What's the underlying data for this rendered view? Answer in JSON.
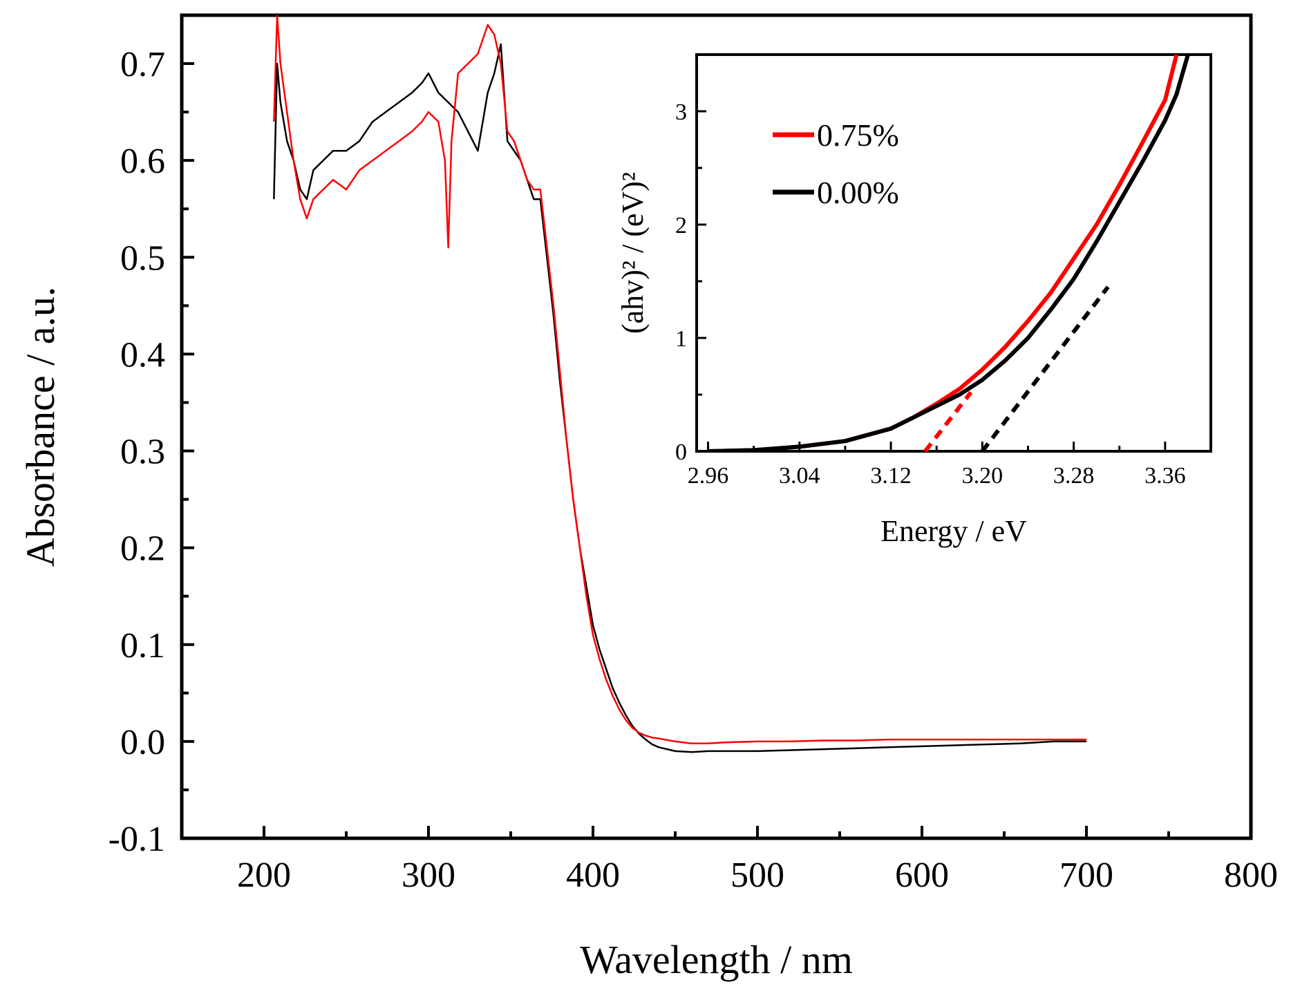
{
  "chart_data": [
    {
      "type": "line",
      "xlabel": "Wavelength / nm",
      "ylabel": "Absorbance / a.u.",
      "xlim": [
        150,
        800
      ],
      "ylim": [
        -0.1,
        0.75
      ],
      "x_ticks": [
        200,
        300,
        400,
        500,
        600,
        700,
        800
      ],
      "x_tick_labels": [
        "200",
        "300",
        "400",
        "500",
        "600",
        "700",
        "800"
      ],
      "y_ticks": [
        -0.1,
        0.0,
        0.1,
        0.2,
        0.3,
        0.4,
        0.5,
        0.6,
        0.7
      ],
      "y_tick_labels": [
        "-0.1",
        "0.0",
        "0.1",
        "0.2",
        "0.3",
        "0.4",
        "0.5",
        "0.6",
        "0.7"
      ],
      "grid": false,
      "series": [
        {
          "name": "0.00%",
          "color": "#000000",
          "x": [
            206,
            208,
            210,
            214,
            218,
            222,
            226,
            230,
            236,
            242,
            250,
            258,
            266,
            274,
            282,
            290,
            296,
            300,
            306,
            312,
            318,
            324,
            330,
            336,
            340,
            344,
            348,
            352,
            356,
            360,
            364,
            368,
            372,
            376,
            380,
            384,
            388,
            392,
            396,
            400,
            404,
            408,
            412,
            416,
            420,
            424,
            428,
            432,
            436,
            440,
            450,
            460,
            470,
            480,
            500,
            520,
            540,
            560,
            580,
            600,
            620,
            640,
            660,
            680,
            700
          ],
          "values": [
            0.56,
            0.7,
            0.66,
            0.62,
            0.6,
            0.57,
            0.56,
            0.59,
            0.6,
            0.61,
            0.61,
            0.62,
            0.64,
            0.65,
            0.66,
            0.67,
            0.68,
            0.69,
            0.67,
            0.66,
            0.65,
            0.63,
            0.61,
            0.67,
            0.69,
            0.72,
            0.62,
            0.61,
            0.6,
            0.58,
            0.56,
            0.56,
            0.5,
            0.44,
            0.37,
            0.31,
            0.25,
            0.2,
            0.16,
            0.12,
            0.095,
            0.075,
            0.055,
            0.04,
            0.027,
            0.016,
            0.008,
            0.002,
            -0.003,
            -0.006,
            -0.01,
            -0.011,
            -0.01,
            -0.01,
            -0.01,
            -0.009,
            -0.008,
            -0.007,
            -0.006,
            -0.005,
            -0.004,
            -0.003,
            -0.002,
            0.0,
            0.0
          ]
        },
        {
          "name": "0.75%",
          "color": "#ff0000",
          "x": [
            206,
            208,
            210,
            214,
            218,
            222,
            226,
            230,
            236,
            242,
            250,
            258,
            266,
            274,
            282,
            290,
            296,
            300,
            306,
            310,
            312,
            314,
            318,
            324,
            330,
            336,
            340,
            344,
            348,
            352,
            356,
            360,
            364,
            368,
            372,
            376,
            380,
            384,
            388,
            392,
            396,
            400,
            404,
            408,
            412,
            416,
            420,
            424,
            428,
            432,
            436,
            440,
            450,
            460,
            470,
            480,
            500,
            520,
            540,
            560,
            580,
            600,
            620,
            640,
            660,
            680,
            700
          ],
          "values": [
            0.64,
            0.75,
            0.7,
            0.65,
            0.6,
            0.56,
            0.54,
            0.56,
            0.57,
            0.58,
            0.57,
            0.59,
            0.6,
            0.61,
            0.62,
            0.63,
            0.64,
            0.65,
            0.64,
            0.6,
            0.51,
            0.62,
            0.69,
            0.7,
            0.71,
            0.74,
            0.73,
            0.7,
            0.63,
            0.62,
            0.6,
            0.58,
            0.57,
            0.57,
            0.51,
            0.45,
            0.38,
            0.31,
            0.25,
            0.2,
            0.15,
            0.11,
            0.085,
            0.064,
            0.047,
            0.033,
            0.022,
            0.014,
            0.009,
            0.006,
            0.004,
            0.003,
            0.0,
            -0.002,
            -0.002,
            -0.001,
            0.0,
            0.0,
            0.001,
            0.001,
            0.002,
            0.002,
            0.002,
            0.002,
            0.002,
            0.002,
            0.002
          ]
        }
      ]
    },
    {
      "type": "line",
      "xlabel": "Energy / eV",
      "ylabel": "(ahv)² / (eV)²",
      "xlim": [
        2.95,
        3.4
      ],
      "ylim": [
        0,
        3.5
      ],
      "x_ticks": [
        2.96,
        3.04,
        3.12,
        3.2,
        3.28,
        3.36
      ],
      "x_tick_labels": [
        "2.96",
        "3.04",
        "3.12",
        "3.20",
        "3.28",
        "3.36"
      ],
      "y_ticks": [
        0,
        1,
        2,
        3
      ],
      "y_tick_labels": [
        "0",
        "1",
        "2",
        "3"
      ],
      "grid": false,
      "legend_position": "top-left",
      "series": [
        {
          "name": "0.75%",
          "color": "#ff0000",
          "x": [
            2.96,
            3.0,
            3.04,
            3.08,
            3.12,
            3.14,
            3.16,
            3.18,
            3.2,
            3.22,
            3.24,
            3.26,
            3.28,
            3.3,
            3.32,
            3.34,
            3.36,
            3.37
          ],
          "values": [
            0.0,
            0.01,
            0.04,
            0.09,
            0.2,
            0.3,
            0.42,
            0.55,
            0.72,
            0.92,
            1.15,
            1.4,
            1.7,
            2.0,
            2.35,
            2.72,
            3.1,
            3.5
          ]
        },
        {
          "name": "0.00%",
          "color": "#000000",
          "x": [
            2.96,
            3.0,
            3.04,
            3.08,
            3.12,
            3.14,
            3.16,
            3.18,
            3.2,
            3.22,
            3.24,
            3.26,
            3.28,
            3.3,
            3.32,
            3.34,
            3.36,
            3.37,
            3.38
          ],
          "values": [
            0.0,
            0.01,
            0.04,
            0.09,
            0.2,
            0.3,
            0.4,
            0.5,
            0.63,
            0.8,
            1.0,
            1.25,
            1.52,
            1.85,
            2.2,
            2.55,
            2.92,
            3.15,
            3.5
          ]
        }
      ],
      "tangent_lines": [
        {
          "series": "0.75%",
          "color": "#ff0000",
          "x": [
            3.15,
            3.19
          ],
          "values": [
            0.0,
            0.52
          ]
        },
        {
          "series": "0.00%",
          "color": "#000000",
          "x": [
            3.2,
            3.31
          ],
          "values": [
            0.0,
            1.45
          ]
        }
      ]
    }
  ]
}
